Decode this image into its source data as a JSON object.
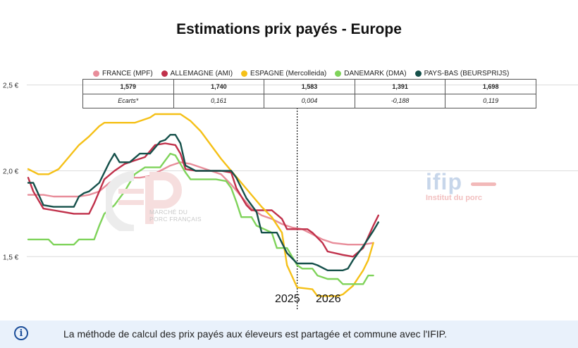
{
  "colors": {
    "france": "#e88d9a",
    "allemagne": "#c0304a",
    "espagne": "#f5c017",
    "danemark": "#7fd35a",
    "paysbas": "#15504a"
  },
  "table": {
    "values": [
      "1,579",
      "1,740",
      "1,583",
      "1,391",
      "1,698"
    ],
    "ecarts_label": "Ecarts*",
    "ecarts": [
      "0,161",
      "0,004",
      "-0,188",
      "0,119"
    ]
  },
  "watermark": {
    "left_line1": "MARCHÉ DU",
    "left_line2": "PORC FRANÇAIS",
    "right_logo": "ifip",
    "right_sub": "Institut du porc"
  },
  "footer": {
    "icon": "info-icon",
    "text": "La méthode de calcul des prix payés aux éleveurs est partagée et commune avec l'IFIP."
  },
  "chart_data": {
    "type": "line",
    "title": "Estimations prix payés - Europe",
    "y_ticks": [
      {
        "value": 1.5,
        "label": "1,5 €"
      },
      {
        "value": 2.0,
        "label": "2,0 €"
      },
      {
        "value": 2.5,
        "label": "2,5 €"
      }
    ],
    "ylim": [
      1.14,
      2.56
    ],
    "xlim": [
      0,
      70
    ],
    "divider_x": 53,
    "year_labels": [
      "2025",
      "2026"
    ],
    "grid": true,
    "legend_position": "top",
    "series": [
      {
        "key": "france",
        "name": "FRANCE (MPF)",
        "points": [
          [
            0,
            1.86
          ],
          [
            3,
            1.86
          ],
          [
            5,
            1.85
          ],
          [
            10,
            1.85
          ],
          [
            12,
            1.86
          ],
          [
            14,
            1.88
          ],
          [
            16,
            1.93
          ],
          [
            18,
            1.96
          ],
          [
            20,
            1.96
          ],
          [
            22,
            1.96
          ],
          [
            24,
            1.97
          ],
          [
            26,
            2.0
          ],
          [
            28,
            2.03
          ],
          [
            30,
            2.05
          ],
          [
            32,
            2.04
          ],
          [
            34,
            2.02
          ],
          [
            36,
            2.0
          ],
          [
            38,
            1.98
          ],
          [
            40,
            1.92
          ],
          [
            42,
            1.85
          ],
          [
            44,
            1.78
          ],
          [
            46,
            1.74
          ],
          [
            48,
            1.72
          ],
          [
            50,
            1.69
          ],
          [
            52,
            1.67
          ],
          [
            54,
            1.66
          ],
          [
            56,
            1.63
          ],
          [
            58,
            1.6
          ],
          [
            60,
            1.58
          ],
          [
            63,
            1.57
          ],
          [
            66,
            1.57
          ],
          [
            68,
            1.58
          ]
        ]
      },
      {
        "key": "allemagne",
        "name": "ALLEMAGNE (AMI)",
        "points": [
          [
            0,
            1.96
          ],
          [
            1,
            1.88
          ],
          [
            3,
            1.78
          ],
          [
            5,
            1.77
          ],
          [
            7,
            1.76
          ],
          [
            9,
            1.75
          ],
          [
            12,
            1.75
          ],
          [
            13,
            1.81
          ],
          [
            15,
            1.95
          ],
          [
            17,
            2.0
          ],
          [
            19,
            2.04
          ],
          [
            21,
            2.06
          ],
          [
            23,
            2.08
          ],
          [
            25,
            2.15
          ],
          [
            27,
            2.16
          ],
          [
            29,
            2.15
          ],
          [
            30,
            2.1
          ],
          [
            31,
            2.01
          ],
          [
            33,
            2.0
          ],
          [
            38,
            2.0
          ],
          [
            40,
            1.99
          ],
          [
            41,
            1.9
          ],
          [
            43,
            1.8
          ],
          [
            44,
            1.77
          ],
          [
            48,
            1.77
          ],
          [
            50,
            1.72
          ],
          [
            51,
            1.66
          ],
          [
            55,
            1.66
          ],
          [
            56,
            1.64
          ],
          [
            58,
            1.58
          ],
          [
            59,
            1.53
          ],
          [
            62,
            1.51
          ],
          [
            64,
            1.5
          ],
          [
            66,
            1.55
          ],
          [
            68,
            1.68
          ],
          [
            69,
            1.74
          ]
        ]
      },
      {
        "key": "espagne",
        "name": "ESPAGNE (Mercolleida)",
        "points": [
          [
            0,
            2.01
          ],
          [
            2,
            1.98
          ],
          [
            4,
            1.98
          ],
          [
            6,
            2.01
          ],
          [
            8,
            2.08
          ],
          [
            10,
            2.15
          ],
          [
            12,
            2.2
          ],
          [
            14,
            2.26
          ],
          [
            15,
            2.28
          ],
          [
            21,
            2.28
          ],
          [
            24,
            2.31
          ],
          [
            25,
            2.33
          ],
          [
            30,
            2.33
          ],
          [
            32,
            2.29
          ],
          [
            34,
            2.23
          ],
          [
            36,
            2.15
          ],
          [
            38,
            2.07
          ],
          [
            40,
            2.0
          ],
          [
            42,
            1.93
          ],
          [
            44,
            1.86
          ],
          [
            46,
            1.79
          ],
          [
            48,
            1.73
          ],
          [
            50,
            1.64
          ],
          [
            51,
            1.45
          ],
          [
            53,
            1.32
          ],
          [
            56,
            1.31
          ],
          [
            57,
            1.27
          ],
          [
            61,
            1.27
          ],
          [
            62,
            1.28
          ],
          [
            64,
            1.33
          ],
          [
            66,
            1.42
          ],
          [
            67,
            1.48
          ],
          [
            68,
            1.58
          ]
        ]
      },
      {
        "key": "danemark",
        "name": "DANEMARK (DMA)",
        "points": [
          [
            0,
            1.6
          ],
          [
            4,
            1.6
          ],
          [
            5,
            1.57
          ],
          [
            9,
            1.57
          ],
          [
            10,
            1.6
          ],
          [
            13,
            1.6
          ],
          [
            14,
            1.68
          ],
          [
            15,
            1.75
          ],
          [
            17,
            1.8
          ],
          [
            19,
            1.88
          ],
          [
            21,
            1.98
          ],
          [
            23,
            2.02
          ],
          [
            26,
            2.02
          ],
          [
            27,
            2.06
          ],
          [
            28,
            2.1
          ],
          [
            29,
            2.09
          ],
          [
            31,
            1.99
          ],
          [
            32,
            1.95
          ],
          [
            37,
            1.95
          ],
          [
            39,
            1.94
          ],
          [
            40,
            1.9
          ],
          [
            41,
            1.82
          ],
          [
            42,
            1.73
          ],
          [
            44,
            1.73
          ],
          [
            45,
            1.68
          ],
          [
            48,
            1.64
          ],
          [
            49,
            1.55
          ],
          [
            51,
            1.55
          ],
          [
            52,
            1.5
          ],
          [
            53,
            1.45
          ],
          [
            54,
            1.43
          ],
          [
            56,
            1.43
          ],
          [
            57,
            1.39
          ],
          [
            59,
            1.37
          ],
          [
            61,
            1.37
          ],
          [
            62,
            1.34
          ],
          [
            64,
            1.34
          ],
          [
            66,
            1.34
          ],
          [
            67,
            1.39
          ],
          [
            68,
            1.39
          ]
        ]
      },
      {
        "key": "paysbas",
        "name": "PAYS-BAS (BEURSPRIJS)",
        "points": [
          [
            0,
            1.93
          ],
          [
            1,
            1.93
          ],
          [
            3,
            1.8
          ],
          [
            5,
            1.79
          ],
          [
            7,
            1.79
          ],
          [
            9,
            1.79
          ],
          [
            10,
            1.85
          ],
          [
            11,
            1.87
          ],
          [
            12,
            1.88
          ],
          [
            14,
            1.93
          ],
          [
            16,
            2.05
          ],
          [
            17,
            2.1
          ],
          [
            18,
            2.05
          ],
          [
            20,
            2.05
          ],
          [
            22,
            2.1
          ],
          [
            24,
            2.1
          ],
          [
            26,
            2.17
          ],
          [
            27,
            2.18
          ],
          [
            28,
            2.21
          ],
          [
            29,
            2.21
          ],
          [
            30,
            2.16
          ],
          [
            31,
            2.03
          ],
          [
            33,
            2.0
          ],
          [
            40,
            2.0
          ],
          [
            41,
            1.96
          ],
          [
            43,
            1.84
          ],
          [
            45,
            1.76
          ],
          [
            46,
            1.64
          ],
          [
            49,
            1.64
          ],
          [
            50,
            1.58
          ],
          [
            51,
            1.52
          ],
          [
            53,
            1.46
          ],
          [
            56,
            1.46
          ],
          [
            57,
            1.45
          ],
          [
            59,
            1.42
          ],
          [
            62,
            1.42
          ],
          [
            63,
            1.43
          ],
          [
            64,
            1.48
          ],
          [
            66,
            1.56
          ],
          [
            68,
            1.65
          ],
          [
            69,
            1.7
          ]
        ]
      }
    ]
  }
}
